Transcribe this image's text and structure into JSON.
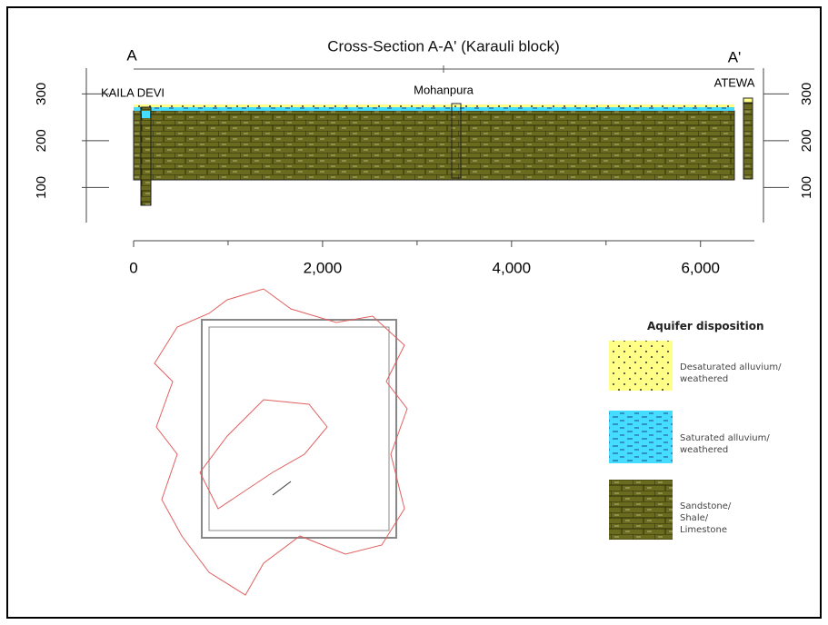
{
  "cross_section": {
    "title": "Cross-Section A-A' (Karauli block)",
    "start_label": "A",
    "end_label": "A'",
    "wells": [
      "KAILA DEVI",
      "Mohanpura",
      "ATEWA"
    ],
    "ylim": [
      25,
      355
    ],
    "yticks": [
      100,
      200,
      300
    ],
    "xlim": [
      0,
      6570
    ],
    "xticks": [
      0,
      {
        "value": 2000,
        "label": "2,000"
      },
      {
        "value": 4000,
        "label": "4,000"
      },
      {
        "value": 6000,
        "label": "6,000"
      }
    ],
    "xminor": [
      1000,
      3000,
      5000
    ]
  },
  "legend": {
    "title": "Aquifer disposition",
    "items": [
      "Desaturated alluvium/ weathered",
      "Saturated alluvium/ weathered",
      "Sandstone/ Shale/ Limestone"
    ]
  }
}
